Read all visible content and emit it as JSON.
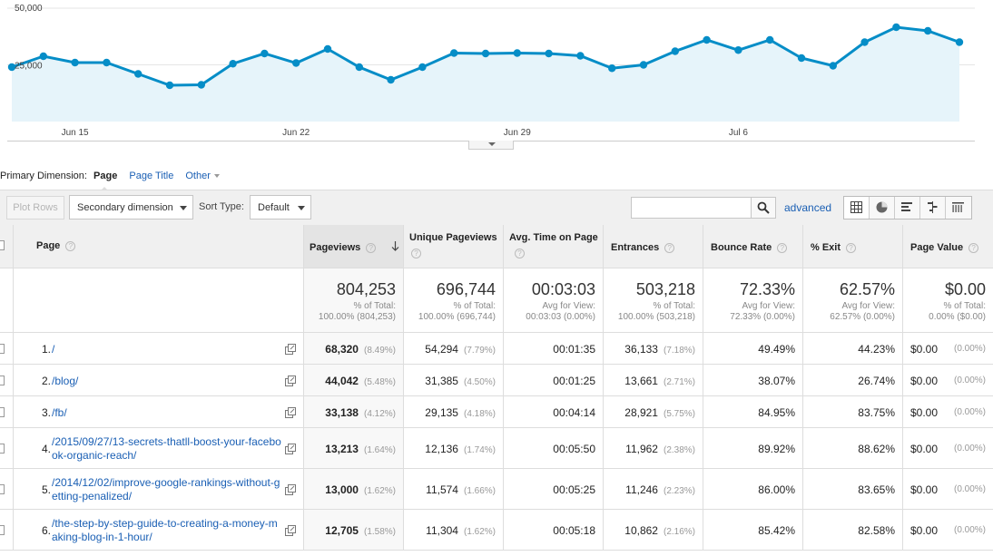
{
  "chart_data": {
    "type": "area",
    "y_ticks": [
      "50,000",
      "25,000"
    ],
    "ylim": [
      0,
      50000
    ],
    "x_ticks": [
      "Jun 15",
      "Jun 22",
      "Jun 29",
      "Jul 6"
    ],
    "series": [
      {
        "values": [
          24000,
          28800,
          26000,
          26000,
          21000,
          16000,
          16200,
          25500,
          30000,
          25800,
          32000,
          24000,
          18400,
          24000,
          30200,
          30000,
          30200,
          30000,
          29000,
          23500,
          25000,
          31000,
          36000,
          31500,
          36000,
          28000,
          24600,
          35000,
          41600,
          40000,
          35000
        ]
      }
    ],
    "color": "#058dc7",
    "fill": "#e6f4fa",
    "grid": true
  },
  "primary_dimension": {
    "label": "Primary Dimension:",
    "active": "Page",
    "options": [
      "Page Title",
      "Other"
    ]
  },
  "toolbar": {
    "plot_rows": "Plot Rows",
    "secondary_dimension": "Secondary dimension",
    "sort_type_label": "Sort Type:",
    "sort_type_value": "Default",
    "search_placeholder": "",
    "advanced": "advanced"
  },
  "table": {
    "headers": {
      "page": "Page",
      "pageviews": "Pageviews",
      "unique": "Unique Pageviews",
      "avg_time": "Avg. Time on Page",
      "entrances": "Entrances",
      "bounce": "Bounce Rate",
      "exit": "% Exit",
      "value": "Page Value"
    },
    "totals": {
      "pageviews": {
        "main": "804,253",
        "sub1": "% of Total:",
        "sub2": "100.00% (804,253)"
      },
      "unique": {
        "main": "696,744",
        "sub1": "% of Total:",
        "sub2": "100.00% (696,744)"
      },
      "avg_time": {
        "main": "00:03:03",
        "sub1": "Avg for View:",
        "sub2": "00:03:03 (0.00%)"
      },
      "entrances": {
        "main": "503,218",
        "sub1": "% of Total:",
        "sub2": "100.00% (503,218)"
      },
      "bounce": {
        "main": "72.33%",
        "sub1": "Avg for View:",
        "sub2": "72.33% (0.00%)"
      },
      "exit": {
        "main": "62.57%",
        "sub1": "Avg for View:",
        "sub2": "62.57% (0.00%)"
      },
      "value": {
        "main": "$0.00",
        "sub1": "% of Total:",
        "sub2": "0.00% ($0.00)"
      }
    },
    "rows": [
      {
        "index": "1.",
        "page": "/",
        "pageviews": "68,320",
        "pageviews_pct": "(8.49%)",
        "unique": "54,294",
        "unique_pct": "(7.79%)",
        "avg_time": "00:01:35",
        "entrances": "36,133",
        "entrances_pct": "(7.18%)",
        "bounce": "49.49%",
        "exit": "44.23%",
        "value": "$0.00",
        "value_pct": "(0.00%)"
      },
      {
        "index": "2.",
        "page": "/blog/",
        "pageviews": "44,042",
        "pageviews_pct": "(5.48%)",
        "unique": "31,385",
        "unique_pct": "(4.50%)",
        "avg_time": "00:01:25",
        "entrances": "13,661",
        "entrances_pct": "(2.71%)",
        "bounce": "38.07%",
        "exit": "26.74%",
        "value": "$0.00",
        "value_pct": "(0.00%)"
      },
      {
        "index": "3.",
        "page": "/fb/",
        "pageviews": "33,138",
        "pageviews_pct": "(4.12%)",
        "unique": "29,135",
        "unique_pct": "(4.18%)",
        "avg_time": "00:04:14",
        "entrances": "28,921",
        "entrances_pct": "(5.75%)",
        "bounce": "84.95%",
        "exit": "83.75%",
        "value": "$0.00",
        "value_pct": "(0.00%)"
      },
      {
        "index": "4.",
        "page": "/2015/09/27/13-secrets-thatll-boost-your-facebook-organic-reach/",
        "pageviews": "13,213",
        "pageviews_pct": "(1.64%)",
        "unique": "12,136",
        "unique_pct": "(1.74%)",
        "avg_time": "00:05:50",
        "entrances": "11,962",
        "entrances_pct": "(2.38%)",
        "bounce": "89.92%",
        "exit": "88.62%",
        "value": "$0.00",
        "value_pct": "(0.00%)"
      },
      {
        "index": "5.",
        "page": "/2014/12/02/improve-google-rankings-without-getting-penalized/",
        "pageviews": "13,000",
        "pageviews_pct": "(1.62%)",
        "unique": "11,574",
        "unique_pct": "(1.66%)",
        "avg_time": "00:05:25",
        "entrances": "11,246",
        "entrances_pct": "(2.23%)",
        "bounce": "86.00%",
        "exit": "83.65%",
        "value": "$0.00",
        "value_pct": "(0.00%)"
      },
      {
        "index": "6.",
        "page": "/the-step-by-step-guide-to-creating-a-money-making-blog-in-1-hour/",
        "pageviews": "12,705",
        "pageviews_pct": "(1.58%)",
        "unique": "11,304",
        "unique_pct": "(1.62%)",
        "avg_time": "00:05:18",
        "entrances": "10,862",
        "entrances_pct": "(2.16%)",
        "bounce": "85.42%",
        "exit": "82.58%",
        "value": "$0.00",
        "value_pct": "(0.00%)"
      }
    ]
  }
}
